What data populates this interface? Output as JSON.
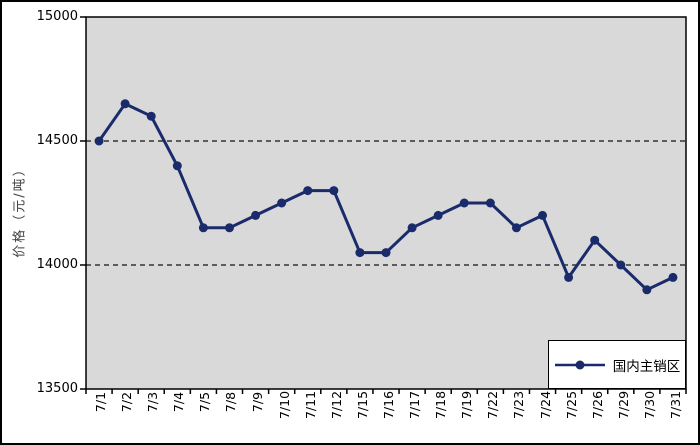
{
  "chart_data": {
    "type": "line",
    "title": "",
    "xlabel": "",
    "ylabel": "价格（元/吨）",
    "categories": [
      "7/1",
      "7/2",
      "7/3",
      "7/4",
      "7/5",
      "7/8",
      "7/9",
      "7/10",
      "7/11",
      "7/12",
      "7/15",
      "7/16",
      "7/17",
      "7/18",
      "7/19",
      "7/22",
      "7/23",
      "7/24",
      "7/25",
      "7/26",
      "7/29",
      "7/30",
      "7/31"
    ],
    "series": [
      {
        "name": "国内主销区",
        "values": [
          14500,
          14650,
          14600,
          14400,
          14150,
          14150,
          14200,
          14250,
          14300,
          14300,
          14050,
          14050,
          14150,
          14200,
          14250,
          14250,
          14150,
          14200,
          13950,
          14100,
          14000,
          13900,
          13950
        ]
      }
    ],
    "ylim": [
      13500,
      15000
    ],
    "y_ticks": [
      15000,
      14500,
      14000,
      13500
    ],
    "gridlines": [
      14500,
      14000
    ],
    "grid_style": "dashed",
    "legend_position": "bottom-right",
    "marker": "circle",
    "colors": {
      "series": "#1a2b6b",
      "plot_bg": "#d9d9d9",
      "grid": "#333333",
      "axis": "#000000",
      "page_bg": "#ffffff"
    }
  }
}
